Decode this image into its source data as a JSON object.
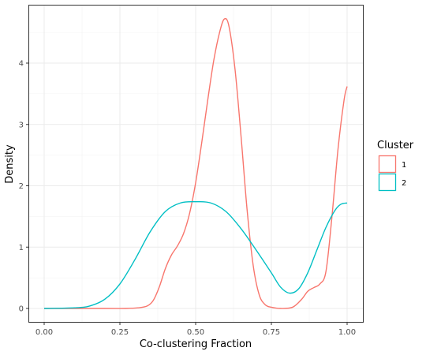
{
  "chart_data": {
    "type": "line",
    "title": "",
    "xlabel": "Co-clustering Fraction",
    "ylabel": "Density",
    "xlim": [
      0,
      1
    ],
    "ylim": [
      0,
      4.7
    ],
    "grid": true,
    "x_ticks": [
      0.0,
      0.25,
      0.5,
      0.75,
      1.0
    ],
    "x_tick_labels": [
      "0.00",
      "0.25",
      "0.50",
      "0.75",
      "1.00"
    ],
    "y_ticks": [
      0,
      1,
      2,
      3,
      4
    ],
    "y_tick_labels": [
      "0",
      "1",
      "2",
      "3",
      "4"
    ],
    "legend": {
      "title": "Cluster",
      "position": "right",
      "entries": [
        {
          "label": "1",
          "color": "#F8766D"
        },
        {
          "label": "2",
          "color": "#00BFC4"
        }
      ]
    },
    "series": [
      {
        "name": "1",
        "color": "#F8766D",
        "points": [
          [
            0.0,
            0.0
          ],
          [
            0.2,
            0.0
          ],
          [
            0.27,
            0.0
          ],
          [
            0.31,
            0.01
          ],
          [
            0.34,
            0.04
          ],
          [
            0.36,
            0.13
          ],
          [
            0.38,
            0.35
          ],
          [
            0.4,
            0.65
          ],
          [
            0.42,
            0.87
          ],
          [
            0.44,
            1.02
          ],
          [
            0.46,
            1.22
          ],
          [
            0.48,
            1.55
          ],
          [
            0.5,
            2.05
          ],
          [
            0.52,
            2.7
          ],
          [
            0.54,
            3.4
          ],
          [
            0.56,
            4.05
          ],
          [
            0.58,
            4.52
          ],
          [
            0.595,
            4.72
          ],
          [
            0.61,
            4.6
          ],
          [
            0.63,
            3.9
          ],
          [
            0.65,
            2.8
          ],
          [
            0.67,
            1.6
          ],
          [
            0.69,
            0.7
          ],
          [
            0.71,
            0.22
          ],
          [
            0.73,
            0.06
          ],
          [
            0.75,
            0.02
          ],
          [
            0.78,
            0.0
          ],
          [
            0.82,
            0.02
          ],
          [
            0.85,
            0.15
          ],
          [
            0.87,
            0.28
          ],
          [
            0.89,
            0.34
          ],
          [
            0.91,
            0.4
          ],
          [
            0.93,
            0.6
          ],
          [
            0.95,
            1.5
          ],
          [
            0.97,
            2.6
          ],
          [
            0.99,
            3.4
          ],
          [
            1.0,
            3.62
          ]
        ]
      },
      {
        "name": "2",
        "color": "#00BFC4",
        "points": [
          [
            0.0,
            0.0
          ],
          [
            0.1,
            0.01
          ],
          [
            0.15,
            0.04
          ],
          [
            0.2,
            0.15
          ],
          [
            0.25,
            0.4
          ],
          [
            0.3,
            0.8
          ],
          [
            0.35,
            1.25
          ],
          [
            0.4,
            1.58
          ],
          [
            0.45,
            1.72
          ],
          [
            0.5,
            1.74
          ],
          [
            0.55,
            1.72
          ],
          [
            0.6,
            1.58
          ],
          [
            0.65,
            1.3
          ],
          [
            0.7,
            0.95
          ],
          [
            0.75,
            0.58
          ],
          [
            0.78,
            0.35
          ],
          [
            0.81,
            0.25
          ],
          [
            0.84,
            0.32
          ],
          [
            0.87,
            0.58
          ],
          [
            0.9,
            0.95
          ],
          [
            0.93,
            1.32
          ],
          [
            0.96,
            1.6
          ],
          [
            0.98,
            1.7
          ],
          [
            1.0,
            1.72
          ]
        ]
      }
    ]
  }
}
